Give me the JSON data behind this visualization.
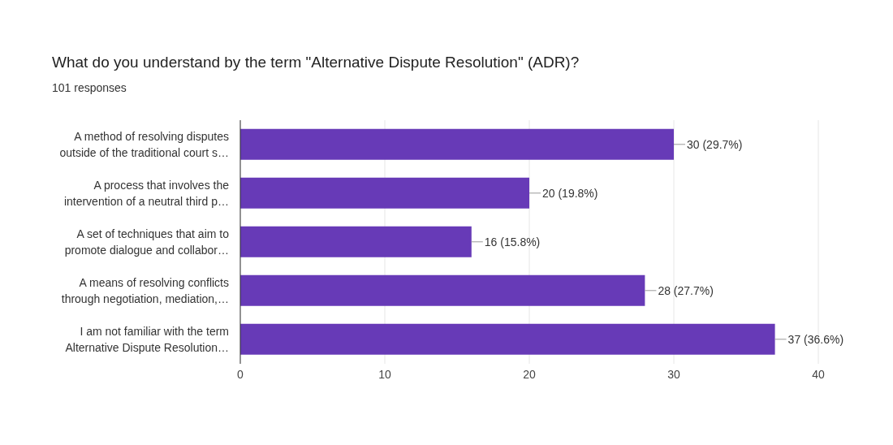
{
  "chart_data": {
    "type": "bar",
    "orientation": "horizontal",
    "title": "What do you understand by the term \"Alternative Dispute Resolution\" (ADR)?",
    "subtitle": "101 responses",
    "categories": [
      "A method of resolving disputes\noutside of the traditional court s…",
      "A process that involves the\nintervention of a neutral third p…",
      "A set of techniques that aim to\npromote dialogue and collabor…",
      "A means of resolving conflicts\nthrough negotiation, mediation,…",
      "I am not familiar with the term\nAlternative Dispute Resolution…"
    ],
    "values": [
      30,
      20,
      16,
      28,
      37
    ],
    "value_labels": [
      "30 (29.7%)",
      "20 (19.8%)",
      "16 (15.8%)",
      "28 (27.7%)",
      "37 (36.6%)"
    ],
    "color": "#673ab7",
    "xlim": [
      0,
      40
    ],
    "xticks": [
      0,
      10,
      20,
      30,
      40
    ],
    "grid": "x"
  }
}
